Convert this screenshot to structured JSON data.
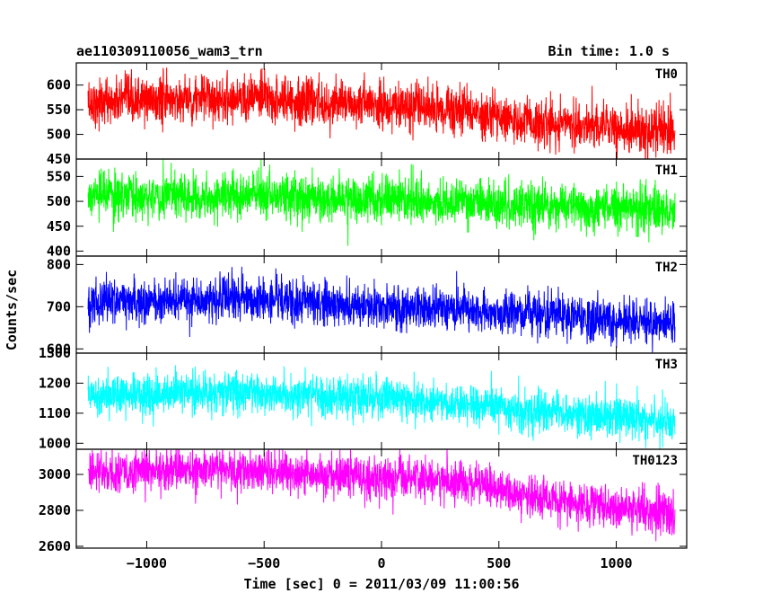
{
  "header": {
    "title": "ae110309110056_wam3_trn",
    "bin_time": "Bin time: 1.0 s"
  },
  "axes": {
    "ylabel": "Counts/sec",
    "xlabel": "Time [sec] 0 = 2011/03/09 11:00:56",
    "x_ticks": [
      "−1000",
      "−500",
      "0",
      "500",
      "1000"
    ]
  },
  "chart_data": {
    "type": "line",
    "title": "ae110309110056_wam3_trn",
    "xlabel": "Time [sec] 0 = 2011/03/09 11:00:56",
    "ylabel": "Counts/sec",
    "xlim": [
      -1300,
      1300
    ],
    "x_range": [
      -1250,
      1250
    ],
    "x_step": 1.0,
    "shared_x_ticks": [
      -1000,
      -500,
      0,
      500,
      1000
    ],
    "panels": [
      {
        "name": "TH0",
        "color": "#ff0000",
        "ylim": [
          450,
          645
        ],
        "y_ticks": [
          450,
          500,
          550,
          600
        ],
        "trend": [
          [
            -1250,
            565
          ],
          [
            -600,
            575
          ],
          [
            0,
            558
          ],
          [
            350,
            548
          ],
          [
            600,
            525
          ],
          [
            1250,
            505
          ]
        ],
        "noise_sd": 24
      },
      {
        "name": "TH1",
        "color": "#00ff00",
        "ylim": [
          390,
          585
        ],
        "y_ticks": [
          400,
          450,
          500,
          550
        ],
        "trend": [
          [
            -1250,
            510
          ],
          [
            -600,
            512
          ],
          [
            0,
            503
          ],
          [
            500,
            493
          ],
          [
            1250,
            482
          ]
        ],
        "noise_sd": 23
      },
      {
        "name": "TH2",
        "color": "#0000ff",
        "ylim": [
          590,
          820
        ],
        "y_ticks": [
          600,
          700,
          800
        ],
        "trend": [
          [
            -1250,
            712
          ],
          [
            -600,
            718
          ],
          [
            0,
            702
          ],
          [
            500,
            688
          ],
          [
            1250,
            660
          ]
        ],
        "noise_sd": 26
      },
      {
        "name": "TH3",
        "color": "#00ffff",
        "ylim": [
          980,
          1300
        ],
        "y_ticks": [
          1000,
          1100,
          1200,
          1300
        ],
        "trend": [
          [
            -1250,
            1165
          ],
          [
            -600,
            1170
          ],
          [
            0,
            1150
          ],
          [
            500,
            1118
          ],
          [
            1250,
            1070
          ]
        ],
        "noise_sd": 35
      },
      {
        "name": "TH0123",
        "color": "#ff00ff",
        "ylim": [
          2590,
          3140
        ],
        "y_ticks": [
          2600,
          2800,
          3000
        ],
        "trend": [
          [
            -1250,
            3010
          ],
          [
            -600,
            3030
          ],
          [
            0,
            2980
          ],
          [
            350,
            2965
          ],
          [
            600,
            2880
          ],
          [
            1250,
            2780
          ]
        ],
        "noise_sd": 58
      }
    ]
  }
}
